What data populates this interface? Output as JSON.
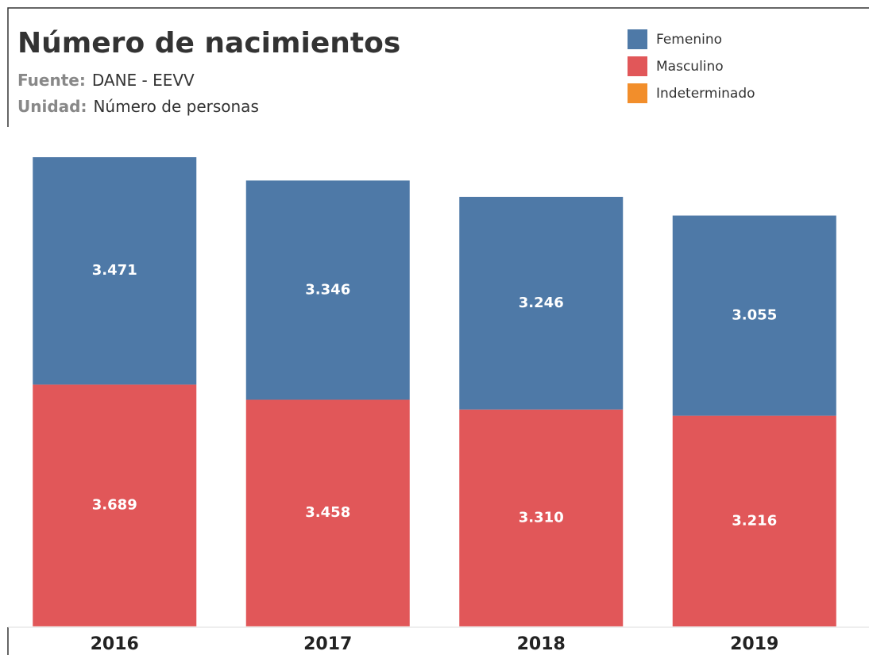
{
  "chart_data": {
    "type": "stacked_bar",
    "title": "Número de nacimientos",
    "source_label": "Fuente:",
    "source": "DANE - EEVV",
    "unit_label": "Unidad:",
    "unit": "Número de personas",
    "categories": [
      "2016",
      "2017",
      "2018",
      "2019"
    ],
    "series": [
      {
        "name": "Femenino",
        "color": "#4e79a7",
        "values": [
          3471,
          3346,
          3246,
          3055
        ],
        "value_labels": [
          "3.471",
          "3.346",
          "3.246",
          "3.055"
        ]
      },
      {
        "name": "Masculino",
        "color": "#e15759",
        "values": [
          3689,
          3458,
          3310,
          3216
        ],
        "value_labels": [
          "3.689",
          "3.458",
          "3.310",
          "3.216"
        ]
      },
      {
        "name": "Indeterminado",
        "color": "#f28e2b",
        "values": [
          2,
          2,
          1,
          null
        ]
      }
    ]
  }
}
